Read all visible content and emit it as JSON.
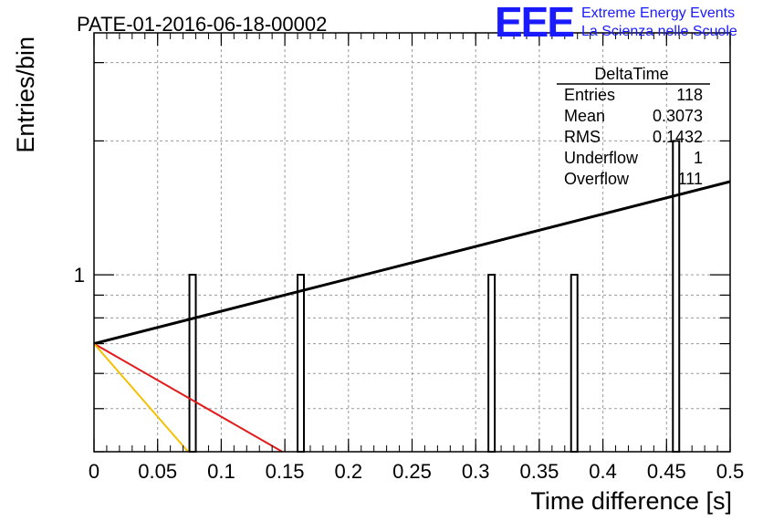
{
  "title": "PATE-01-2016-06-18-00002",
  "logo": {
    "mark": "EEE",
    "line1": "Extreme Energy Events",
    "line2": "La Scienza nelle Scuole",
    "color": "#1a1aff"
  },
  "stats": {
    "name": "DeltaTime",
    "rows": [
      {
        "label": "Entries",
        "value": "118"
      },
      {
        "label": "Mean",
        "value": "0.3073"
      },
      {
        "label": "RMS",
        "value": "0.1432"
      },
      {
        "label": "Underflow",
        "value": "1"
      },
      {
        "label": "Overflow",
        "value": "111"
      }
    ]
  },
  "chart_data": {
    "type": "bar",
    "title": "PATE-01-2016-06-18-00002",
    "xlabel": "Time difference [s]",
    "ylabel": "Entries/bin",
    "xlim": [
      0,
      0.5
    ],
    "ylim": [
      0.4,
      3.5
    ],
    "yscale": "log",
    "grid": true,
    "x_ticks": [
      "0",
      "0.05",
      "0.1",
      "0.15",
      "0.2",
      "0.25",
      "0.3",
      "0.35",
      "0.4",
      "0.45",
      "0.5"
    ],
    "y_ticks": [
      "1"
    ],
    "bin_width": 0.005,
    "bins": [
      {
        "x_low": 0.075,
        "value": 1
      },
      {
        "x_low": 0.16,
        "value": 1
      },
      {
        "x_low": 0.31,
        "value": 1
      },
      {
        "x_low": 0.375,
        "value": 1
      },
      {
        "x_low": 0.455,
        "value": 2
      }
    ],
    "lines": [
      {
        "color": "#000000",
        "x": [
          0,
          0.5
        ],
        "y": [
          0.7,
          1.62
        ]
      },
      {
        "color": "#e31a1a",
        "x": [
          0,
          0.148
        ],
        "y": [
          0.7,
          0.4
        ]
      },
      {
        "color": "#f5c000",
        "x": [
          0,
          0.074
        ],
        "y": [
          0.7,
          0.4
        ]
      }
    ]
  }
}
